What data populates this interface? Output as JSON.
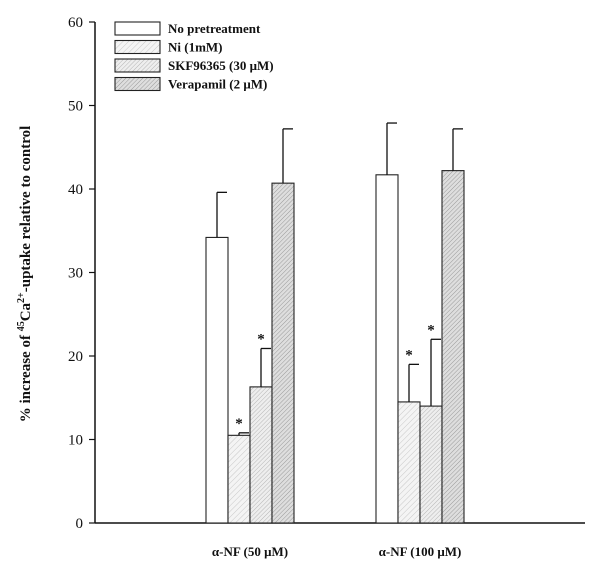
{
  "chart_data": {
    "type": "bar",
    "ylabel_parts": {
      "pre": "% increase of ",
      "sup1": "45",
      "mid": "Ca",
      "sup2": "2+",
      "post": "-uptake relative to control"
    },
    "xlabel": "",
    "ylim": [
      0,
      60
    ],
    "yticks": [
      0,
      10,
      20,
      30,
      40,
      50,
      60
    ],
    "grid": false,
    "legend_position": "top-left",
    "categories": [
      "α-NF (50 μM)",
      "α-NF (100 μM)"
    ],
    "series": [
      {
        "name": "No pretreatment",
        "fill": "#ffffff",
        "pattern": "none",
        "values": [
          34.2,
          41.7
        ],
        "errors": [
          5.4,
          6.2
        ],
        "significant": [
          false,
          false
        ]
      },
      {
        "name": "Ni (1mM)",
        "fill": "#f4f4f4",
        "pattern": "hatch-fine",
        "values": [
          10.5,
          14.5
        ],
        "errors": [
          0.3,
          4.5
        ],
        "significant": [
          true,
          true
        ]
      },
      {
        "name": "SKF96365 (30 μM)",
        "fill": "#eeeeee",
        "pattern": "hatch-medium",
        "values": [
          16.3,
          14.0
        ],
        "errors": [
          4.6,
          8.0
        ],
        "significant": [
          true,
          true
        ]
      },
      {
        "name": "Verapamil (2 μM)",
        "fill": "#dedede",
        "pattern": "hatch-dense",
        "values": [
          40.7,
          42.2
        ],
        "errors": [
          6.5,
          5.0
        ],
        "significant": [
          false,
          false
        ]
      }
    ],
    "significance_marker": "*"
  }
}
